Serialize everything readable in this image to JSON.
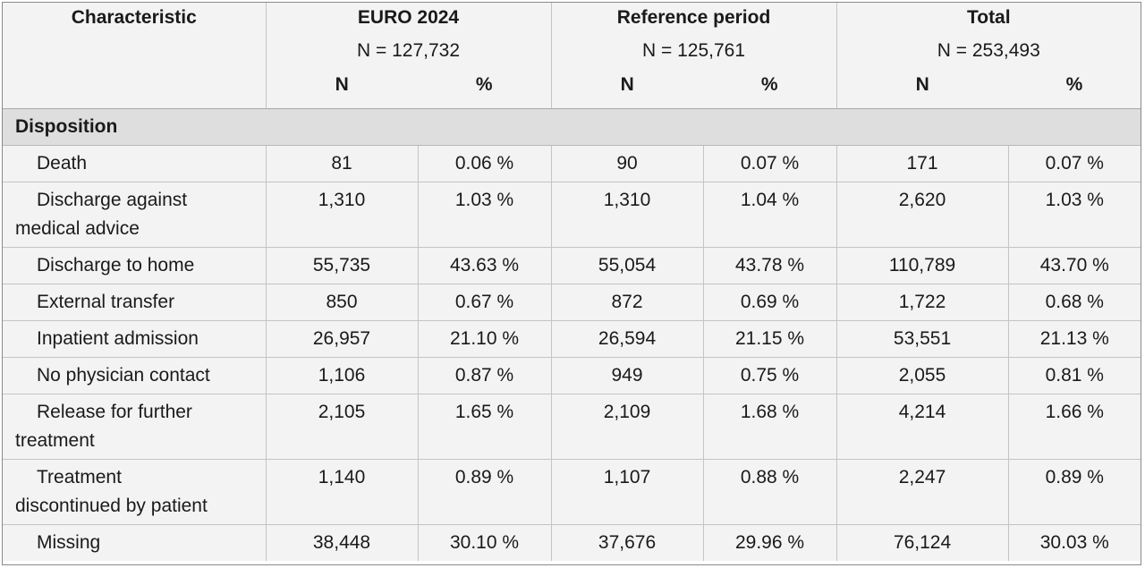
{
  "header": {
    "characteristic": "Characteristic",
    "groups": [
      {
        "title": "EURO 2024",
        "n_label": "N = 127,732"
      },
      {
        "title": "Reference period",
        "n_label": "N = 125,761"
      },
      {
        "title": "Total",
        "n_label": "N = 253,493"
      }
    ],
    "sub_n": "N",
    "sub_pct": "%"
  },
  "section": "Disposition",
  "rows": [
    {
      "line1": "Death",
      "line2": "",
      "cells": [
        "81",
        "0.06 %",
        "90",
        "0.07 %",
        "171",
        "0.07 %"
      ]
    },
    {
      "line1": "Discharge against",
      "line2": "medical advice",
      "cells": [
        "1,310",
        "1.03 %",
        "1,310",
        "1.04 %",
        "2,620",
        "1.03 %"
      ]
    },
    {
      "line1": "Discharge to home",
      "line2": "",
      "cells": [
        "55,735",
        "43.63 %",
        "55,054",
        "43.78 %",
        "110,789",
        "43.70 %"
      ]
    },
    {
      "line1": "External transfer",
      "line2": "",
      "cells": [
        "850",
        "0.67 %",
        "872",
        "0.69 %",
        "1,722",
        "0.68 %"
      ]
    },
    {
      "line1": "Inpatient admission",
      "line2": "",
      "cells": [
        "26,957",
        "21.10 %",
        "26,594",
        "21.15 %",
        "53,551",
        "21.13 %"
      ]
    },
    {
      "line1": "No physician contact",
      "line2": "",
      "cells": [
        "1,106",
        "0.87 %",
        "949",
        "0.75 %",
        "2,055",
        "0.81 %"
      ]
    },
    {
      "line1": "Release for further",
      "line2": "treatment",
      "cells": [
        "2,105",
        "1.65 %",
        "2,109",
        "1.68 %",
        "4,214",
        "1.66 %"
      ]
    },
    {
      "line1": "Treatment",
      "line2": "discontinued by patient",
      "cells": [
        "1,140",
        "0.89 %",
        "1,107",
        "0.88 %",
        "2,247",
        "0.89 %"
      ]
    },
    {
      "line1": "Missing",
      "line2": "",
      "cells": [
        "38,448",
        "30.10 %",
        "37,676",
        "29.96 %",
        "76,124",
        "30.03 %"
      ]
    }
  ]
}
